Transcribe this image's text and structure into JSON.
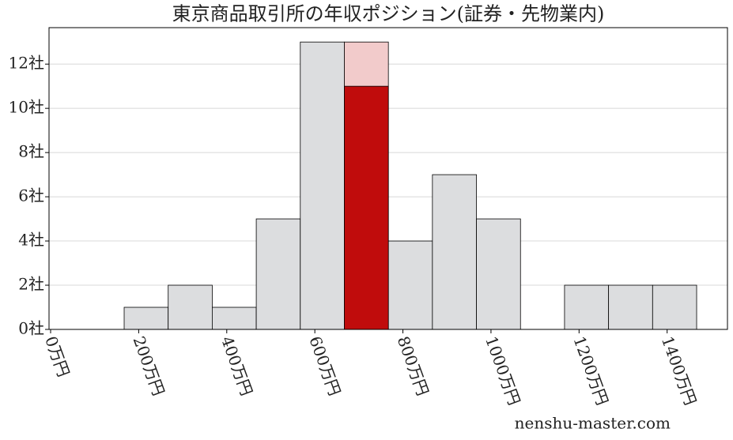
{
  "chart_data": {
    "type": "histogram",
    "title": "東京商品取引所の年収ポジション(証券・先物業内)",
    "bins": [
      167,
      267,
      367,
      467,
      567,
      667,
      767,
      867,
      967,
      1067,
      1167,
      1267,
      1367,
      1467
    ],
    "values": [
      1,
      2,
      1,
      5,
      13,
      13,
      4,
      7,
      5,
      0,
      2,
      2,
      2
    ],
    "colors": [
      "#dcdddf",
      "#dcdddf",
      "#dcdddf",
      "#dcdddf",
      "#dcdddf",
      "#f2cbcb",
      "#dcdddf",
      "#dcdddf",
      "#dcdddf",
      "#dcdddf",
      "#dcdddf",
      "#dcdddf",
      "#dcdddf"
    ],
    "highlight": {
      "bins": [
        667,
        767
      ],
      "value": 11,
      "color": "#c00c0c"
    },
    "xlim": [
      -3.6,
      1537
    ],
    "ylim": [
      0,
      13.65
    ],
    "xticks": [
      {
        "value": 0,
        "label": "0万円"
      },
      {
        "value": 200,
        "label": "200万円"
      },
      {
        "value": 400,
        "label": "400万円"
      },
      {
        "value": 600,
        "label": "600万円"
      },
      {
        "value": 800,
        "label": "800万円"
      },
      {
        "value": 1000,
        "label": "1000万円"
      },
      {
        "value": 1200,
        "label": "1200万円"
      },
      {
        "value": 1400,
        "label": "1400万円"
      }
    ],
    "yticks": [
      {
        "value": 0,
        "label": "0社"
      },
      {
        "value": 2,
        "label": "2社"
      },
      {
        "value": 4,
        "label": "4社"
      },
      {
        "value": 6,
        "label": "6社"
      },
      {
        "value": 8,
        "label": "8社"
      },
      {
        "value": 10,
        "label": "10社"
      },
      {
        "value": 12,
        "label": "12社"
      }
    ],
    "grid": true,
    "watermark": "nenshu-master.com"
  }
}
